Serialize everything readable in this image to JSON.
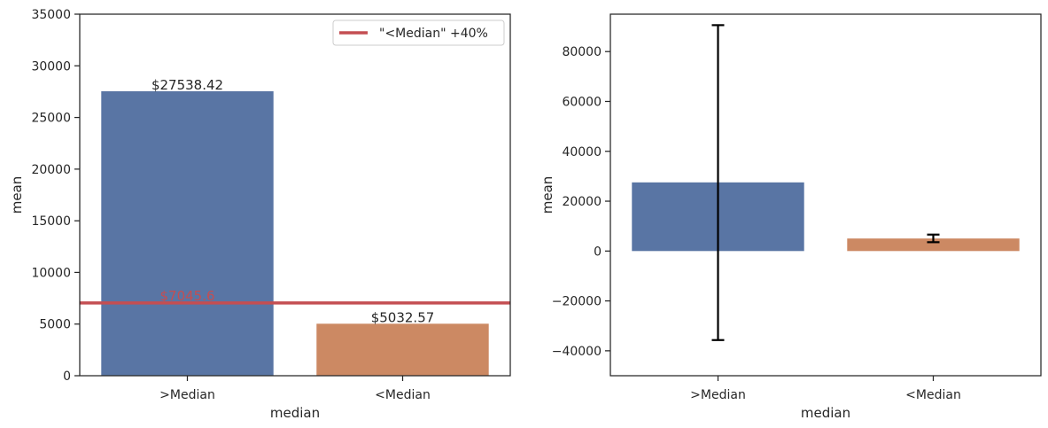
{
  "chart_data": [
    {
      "type": "bar",
      "xlabel": "median",
      "ylabel": "mean",
      "categories": [
        ">Median",
        "<Median"
      ],
      "values": [
        27538.42,
        5032.57
      ],
      "colors": [
        "#5975a4",
        "#cc8963"
      ],
      "ylim": [
        0,
        35000
      ],
      "yticks": [
        0,
        5000,
        10000,
        15000,
        20000,
        25000,
        30000,
        35000
      ],
      "bar_labels": [
        "$27538.42",
        "$5032.57"
      ],
      "reference_line": {
        "value": 7045.6,
        "label": "$7045.6",
        "legend": "\"<Median\" +40%",
        "color": "#c44e52"
      },
      "legend_position": "top-right",
      "grid": false
    },
    {
      "type": "bar",
      "xlabel": "median",
      "ylabel": "mean",
      "categories": [
        ">Median",
        "<Median"
      ],
      "values": [
        27538.42,
        5032.57
      ],
      "colors": [
        "#5975a4",
        "#cc8963"
      ],
      "error_bars": [
        {
          "low": -35700,
          "high": 90600
        },
        {
          "low": 3550,
          "high": 6600
        }
      ],
      "ylim": [
        -50000,
        95000
      ],
      "yticks": [
        -40000,
        -20000,
        0,
        20000,
        40000,
        60000,
        80000
      ],
      "ytick_labels": [
        "−40000",
        "−20000",
        "0",
        "20000",
        "40000",
        "60000",
        "80000"
      ],
      "grid": false
    }
  ]
}
